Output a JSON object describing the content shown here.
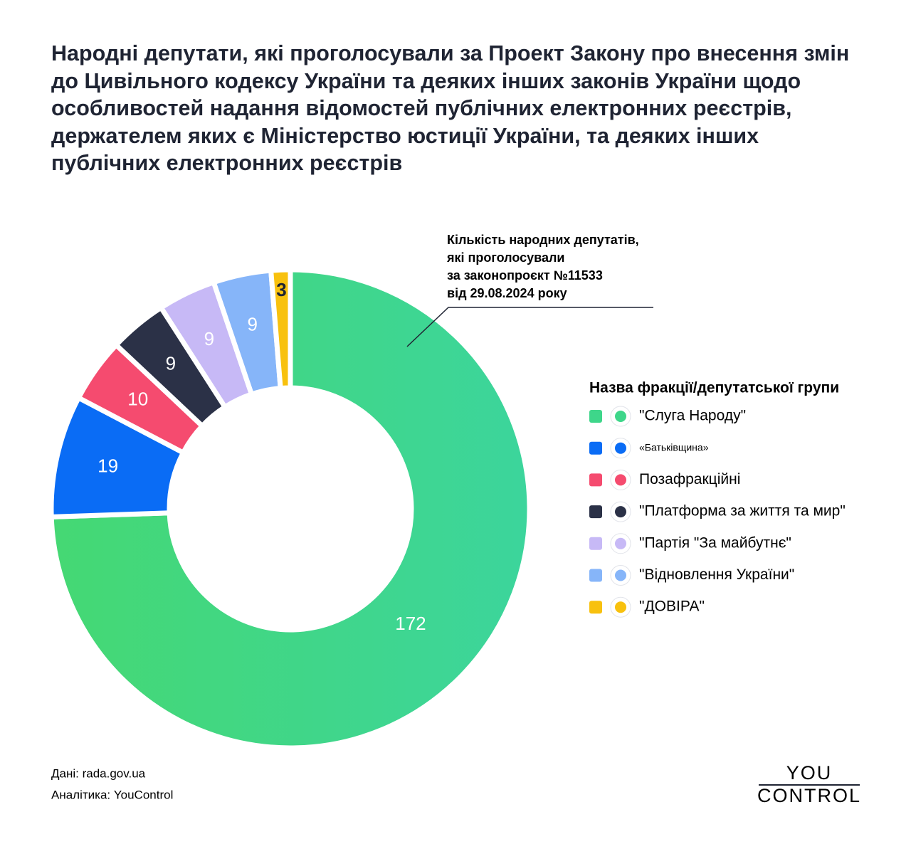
{
  "chart_data": {
    "type": "donut",
    "title": "Народні депутати, які проголосували за Проект Закону про внесення змін до Цивільного кодексу України та деяких інших законів України щодо особливостей надання відомостей публічних електронних реєстрів, держателем яких є Міністерство юстиції України, та деяких інших публічних електронних реєстрів",
    "annotation": [
      "Кількість народних депутатів,",
      "які проголосували",
      "за законопроєкт №11533",
      "від 29.08.2024 року"
    ],
    "legend_title": "Назва фракції/депутатської групи",
    "categories": [
      "\"Слуга Народу\"",
      "«Батьківщина»",
      "Позафракційні",
      "\"Платформа за життя та мир\"",
      "\"Партія \"За майбутнє\"",
      "\"Відновлення України\"",
      "\"ДОВІРА\""
    ],
    "values": [
      172,
      19,
      10,
      9,
      9,
      9,
      3
    ],
    "colors": [
      "#3ed68a",
      "#0a6cf5",
      "#f54b6f",
      "#2b3147",
      "#c7b9f6",
      "#86b5f9",
      "#f8c10e"
    ]
  },
  "footer": {
    "source": "Дані: rada.gov.ua",
    "analytics": "Аналітика: YouControl",
    "logo": [
      "YOU",
      "CONTROL"
    ]
  }
}
